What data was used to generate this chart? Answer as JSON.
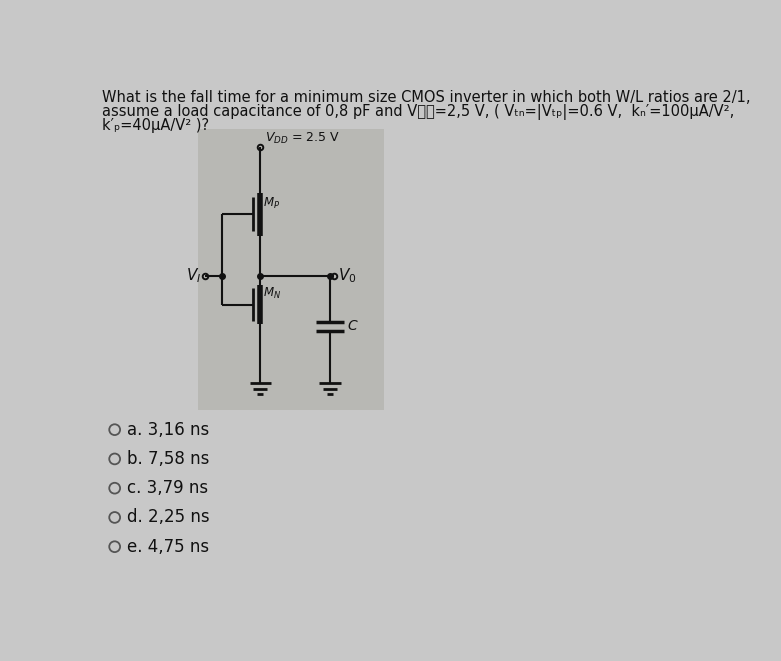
{
  "title_lines": [
    "What is the fall time for a minimum size CMOS inverter in which both W/L ratios are 2/1,",
    "assume a load capacitance of 0,8 pF and V₝₝=2,5 V, ( Vₜₙ=|Vₜₚ|=0.6 V,  kₙ′=100μA/V²,",
    "k′ₚ=40μA/V² )?"
  ],
  "options": [
    "a. 3,16 ns",
    "b. 7,58 ns",
    "c. 3,79 ns",
    "d. 2,25 ns",
    "e. 4,75 ns"
  ],
  "bg_color": "#c8c8c8",
  "circuit_bg": "#b8b8b4",
  "text_color": "#111111",
  "title_fontsize": 10.5,
  "option_fontsize": 12
}
